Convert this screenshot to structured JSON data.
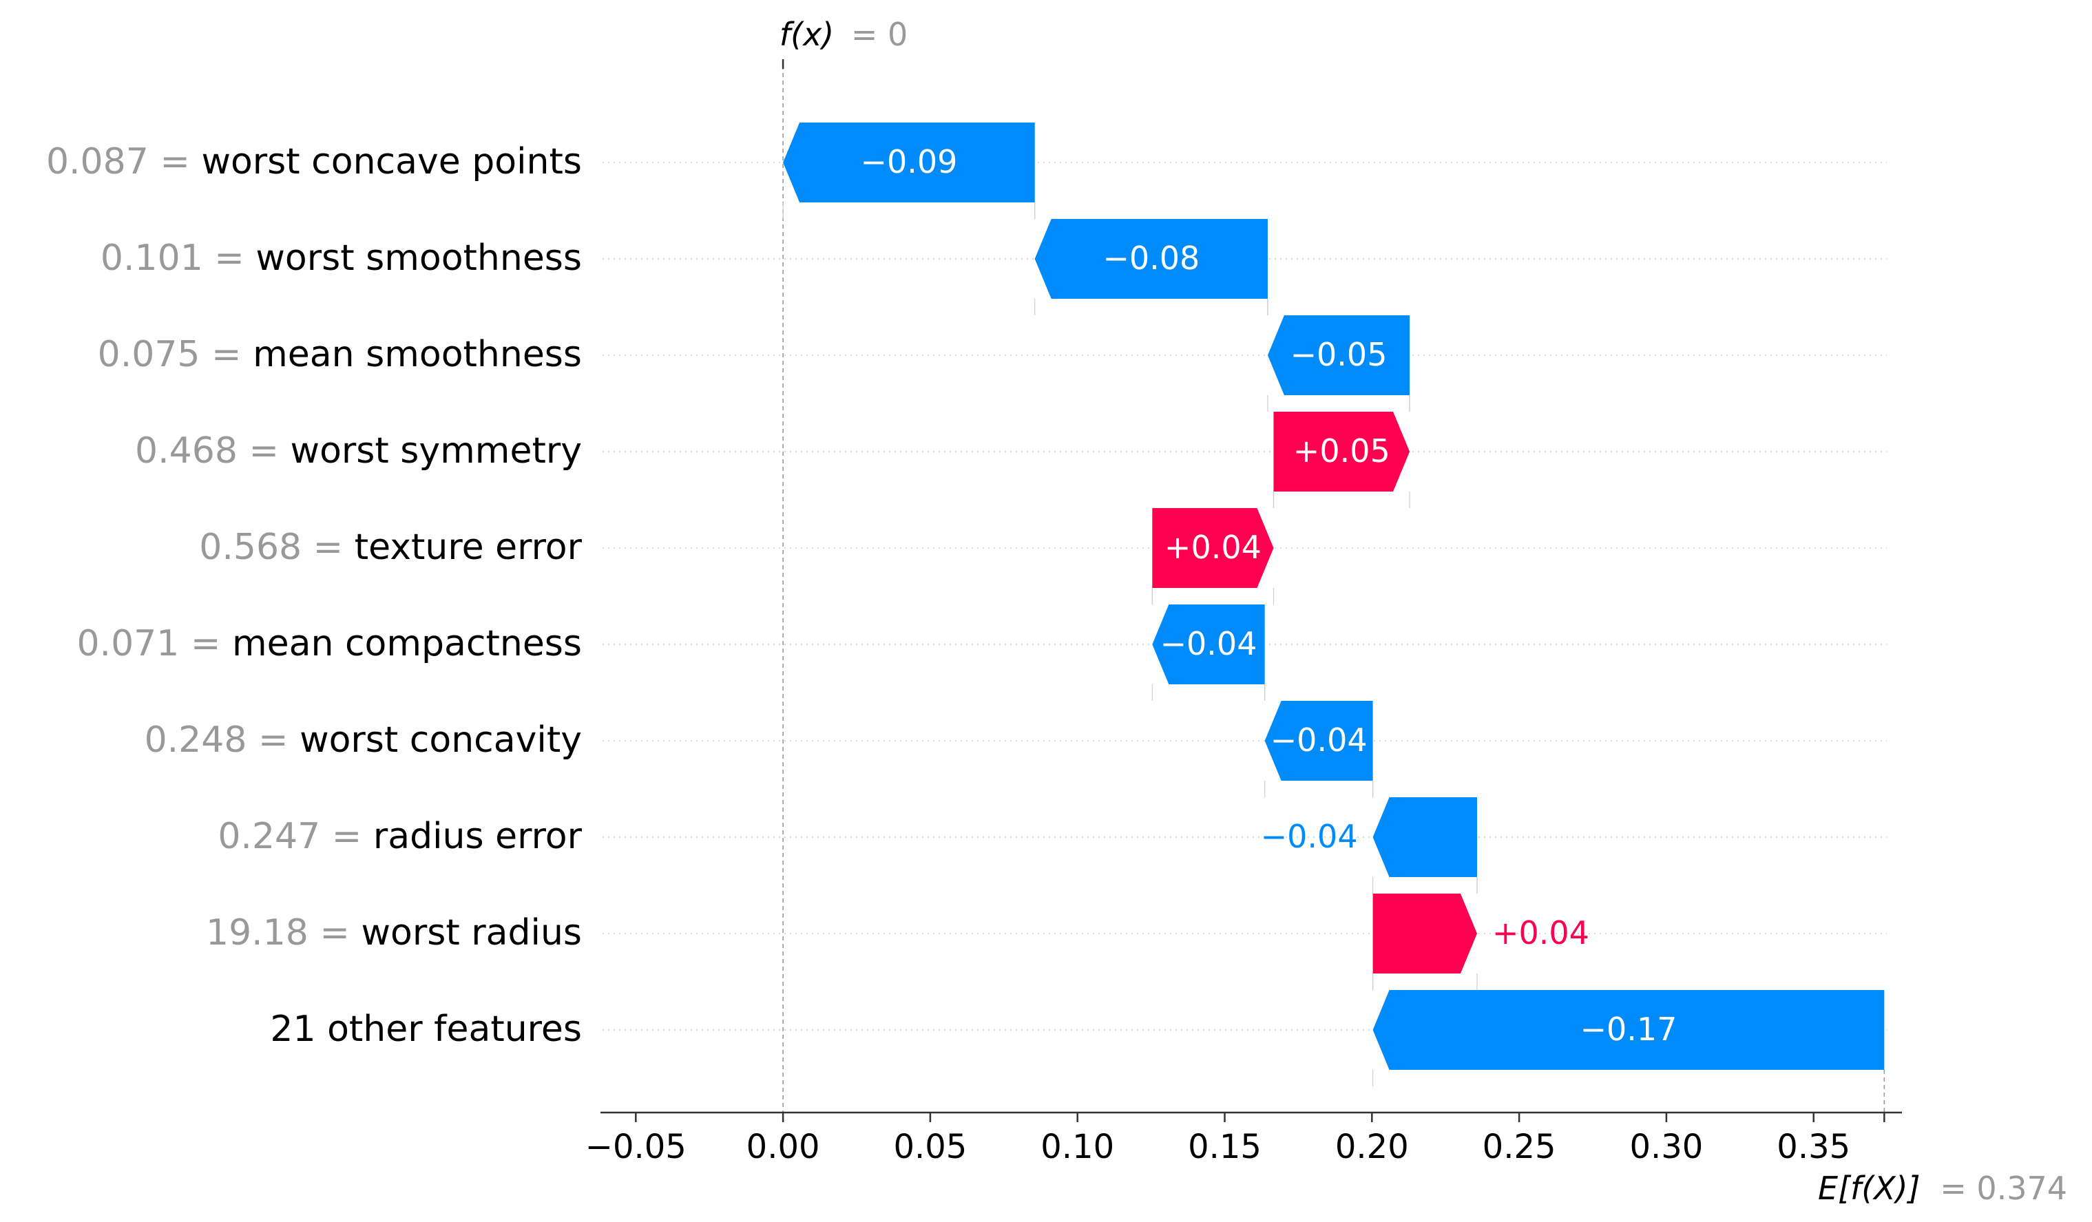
{
  "chart_data": {
    "type": "waterfall",
    "xlim": [
      -0.062,
      0.38
    ],
    "x_ticks": [
      -0.05,
      0.0,
      0.05,
      0.1,
      0.15,
      0.2,
      0.25,
      0.3,
      0.35
    ],
    "x_tick_labels": [
      "−0.05",
      "0.00",
      "0.05",
      "0.10",
      "0.15",
      "0.20",
      "0.25",
      "0.30",
      "0.35"
    ],
    "fx": {
      "label": "f(x)",
      "value_text": "= 0",
      "value": 0.0
    },
    "efx": {
      "label": "E[f(X)]",
      "value_text": "= 0.374",
      "value": 0.374
    },
    "features": [
      {
        "value_text": "0.087 =",
        "name": "worst concave points",
        "start": 0.0855,
        "end": 0.0,
        "label": "−0.09",
        "label_outside": false
      },
      {
        "value_text": "0.101 =",
        "name": "worst smoothness",
        "start": 0.1646,
        "end": 0.0855,
        "label": "−0.08",
        "label_outside": false
      },
      {
        "value_text": "0.075 =",
        "name": "mean smoothness",
        "start": 0.2128,
        "end": 0.1646,
        "label": "−0.05",
        "label_outside": false
      },
      {
        "value_text": "0.468 =",
        "name": "worst symmetry",
        "start": 0.1666,
        "end": 0.2128,
        "label": "+0.05",
        "label_outside": false
      },
      {
        "value_text": "0.568 =",
        "name": "texture error",
        "start": 0.1254,
        "end": 0.1666,
        "label": "+0.04",
        "label_outside": false
      },
      {
        "value_text": "0.071 =",
        "name": "mean compactness",
        "start": 0.1636,
        "end": 0.1254,
        "label": "−0.04",
        "label_outside": false
      },
      {
        "value_text": "0.248 =",
        "name": "worst concavity",
        "start": 0.2003,
        "end": 0.1636,
        "label": "−0.04",
        "label_outside": false
      },
      {
        "value_text": "0.247 =",
        "name": "radius error",
        "start": 0.2357,
        "end": 0.2003,
        "label": "−0.04",
        "label_outside": true
      },
      {
        "value_text": "19.18 =",
        "name": "worst radius",
        "start": 0.2003,
        "end": 0.2357,
        "label": "+0.04",
        "label_outside": true
      },
      {
        "value_text": "",
        "name": "21 other features",
        "start": 0.374,
        "end": 0.2003,
        "label": "−0.17",
        "label_outside": false
      }
    ],
    "colors": {
      "positive": "#ff0051",
      "negative": "#008bfb",
      "axis": "#333333",
      "muted": "#999999",
      "grid": "#cccccc",
      "text": "#000000"
    }
  }
}
